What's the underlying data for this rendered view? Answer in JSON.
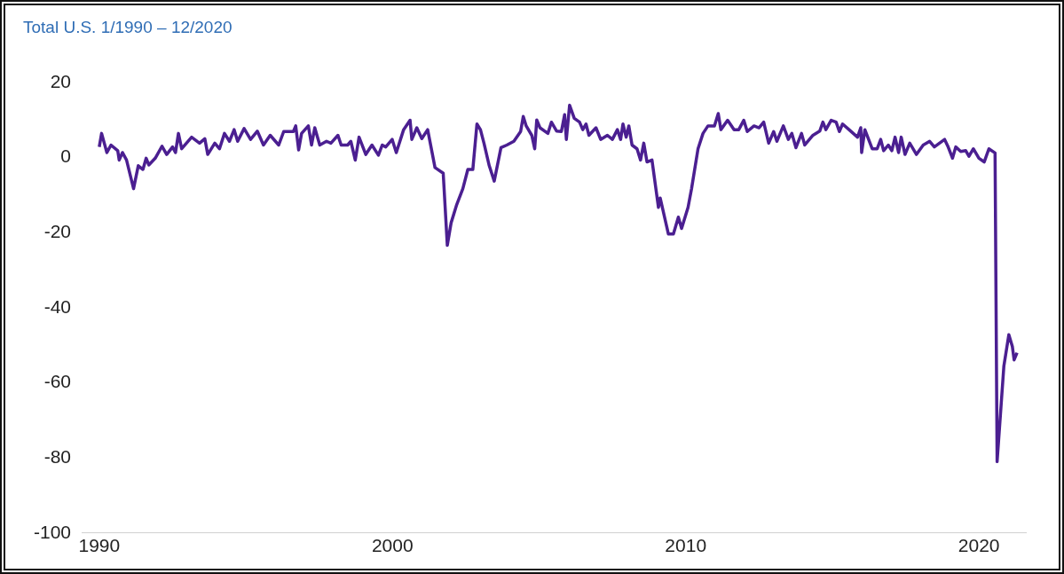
{
  "chart_data": {
    "type": "line",
    "title": "Total U.S. 1/1990 – 12/2020",
    "xlim": [
      1989.4,
      2021.6
    ],
    "xticks": [
      1990,
      2000,
      2010,
      2020
    ],
    "ylim": [
      -100,
      20
    ],
    "yticks": [
      -100,
      -80,
      -60,
      -40,
      -20,
      0,
      20
    ],
    "grid": false,
    "legend": false,
    "marker": "none",
    "line_style": "solid",
    "series": [
      {
        "color": "#4b1f91",
        "x": [
          1990.0,
          1990.08,
          1990.26,
          1990.4,
          1990.63,
          1990.68,
          1990.79,
          1990.93,
          1991.17,
          1991.33,
          1991.49,
          1991.6,
          1991.69,
          1991.91,
          1992.14,
          1992.3,
          1992.5,
          1992.6,
          1992.7,
          1992.81,
          1993.15,
          1993.42,
          1993.6,
          1993.7,
          1993.94,
          1994.1,
          1994.27,
          1994.44,
          1994.6,
          1994.72,
          1994.94,
          1995.16,
          1995.39,
          1995.6,
          1995.83,
          1996.12,
          1996.29,
          1996.62,
          1996.7,
          1996.8,
          1996.9,
          1997.13,
          1997.24,
          1997.35,
          1997.52,
          1997.75,
          1997.9,
          1998.14,
          1998.25,
          1998.47,
          1998.58,
          1998.73,
          1998.86,
          1999.09,
          1999.3,
          1999.52,
          1999.65,
          1999.77,
          1999.99,
          2000.13,
          2000.38,
          2000.6,
          2000.66,
          2000.83,
          2001.0,
          2001.2,
          2001.45,
          2001.73,
          2001.87,
          2002.0,
          2002.18,
          2002.4,
          2002.57,
          2002.74,
          2002.88,
          2003.0,
          2003.12,
          2003.3,
          2003.47,
          2003.7,
          2003.9,
          2004.14,
          2004.37,
          2004.46,
          2004.56,
          2004.75,
          2004.85,
          2004.92,
          2005.03,
          2005.3,
          2005.42,
          2005.6,
          2005.76,
          2005.87,
          2005.93,
          2006.04,
          2006.2,
          2006.38,
          2006.49,
          2006.6,
          2006.7,
          2006.94,
          2007.1,
          2007.33,
          2007.5,
          2007.67,
          2007.78,
          2007.86,
          2007.97,
          2008.06,
          2008.17,
          2008.34,
          2008.46,
          2008.57,
          2008.68,
          2008.85,
          2009.07,
          2009.13,
          2009.41,
          2009.58,
          2009.75,
          2009.86,
          2010.08,
          2010.2,
          2010.42,
          2010.59,
          2010.76,
          2010.98,
          2011.11,
          2011.2,
          2011.43,
          2011.65,
          2011.81,
          2011.98,
          2012.1,
          2012.33,
          2012.5,
          2012.66,
          2012.83,
          2013.0,
          2013.11,
          2013.33,
          2013.5,
          2013.62,
          2013.76,
          2013.95,
          2014.06,
          2014.34,
          2014.57,
          2014.68,
          2014.78,
          2014.96,
          2015.13,
          2015.24,
          2015.35,
          2015.57,
          2015.86,
          2015.97,
          2016.0,
          2016.11,
          2016.36,
          2016.53,
          2016.65,
          2016.75,
          2016.91,
          2017.03,
          2017.14,
          2017.26,
          2017.35,
          2017.48,
          2017.64,
          2017.87,
          2018.1,
          2018.32,
          2018.48,
          2018.83,
          2018.95,
          2019.1,
          2019.21,
          2019.38,
          2019.55,
          2019.66,
          2019.81,
          2020.0,
          2020.18,
          2020.34,
          2020.55,
          2020.62,
          2020.85,
          2021.02,
          2021.14,
          2021.2,
          2021.3
        ],
        "values": [
          2.8,
          6.4,
          1.3,
          3.3,
          1.8,
          -0.7,
          1.3,
          -0.7,
          -8.3,
          -2.2,
          -3.2,
          -0.2,
          -2,
          -0.2,
          3,
          0.8,
          2.8,
          1.3,
          6.4,
          2.3,
          5.4,
          3.8,
          5,
          0.8,
          3.8,
          2.3,
          6.4,
          4.3,
          7.4,
          4.3,
          7.7,
          4.8,
          7,
          3.3,
          5.9,
          3.3,
          6.9,
          6.9,
          8.4,
          2,
          6.4,
          8.4,
          3.3,
          7.9,
          3.3,
          4.3,
          3.8,
          5.9,
          3.3,
          3.3,
          4.3,
          -0.7,
          5.4,
          0.8,
          3.3,
          0.6,
          3.3,
          2.8,
          4.8,
          1.3,
          7.4,
          9.9,
          4.8,
          7.9,
          5,
          7.4,
          -2.7,
          -4.2,
          -23.4,
          -17.4,
          -12.8,
          -8.3,
          -3.2,
          -3.2,
          8.9,
          7.4,
          3.8,
          -2.2,
          -6.3,
          2.6,
          3.3,
          4.3,
          6.9,
          10.9,
          8.4,
          5.9,
          2.3,
          10,
          7.9,
          6.4,
          9.4,
          7,
          6.9,
          11.4,
          4.8,
          13.9,
          10.4,
          9.4,
          7.4,
          8.9,
          5.9,
          7.9,
          4.8,
          5.9,
          4.8,
          7.4,
          4.8,
          8.9,
          5.4,
          8.4,
          3.3,
          2.3,
          -0.7,
          3.8,
          -1.2,
          -0.7,
          -13.3,
          -10.8,
          -20.4,
          -20.4,
          -15.9,
          -18.9,
          -13.3,
          -8.3,
          2.3,
          6.4,
          8.4,
          8.4,
          11.7,
          7.4,
          9.9,
          7.4,
          7.4,
          9.9,
          6.9,
          8.4,
          7.9,
          9.4,
          3.8,
          6.9,
          4.3,
          8.4,
          4.8,
          6.4,
          2.6,
          6.4,
          3.3,
          5.9,
          7,
          9.4,
          7.4,
          9.9,
          9.4,
          6.9,
          8.9,
          7.4,
          5.4,
          7.9,
          1.3,
          7.4,
          2.3,
          2.3,
          4.8,
          1.8,
          3.3,
          1.8,
          5.4,
          1.3,
          5.4,
          0.8,
          3.8,
          0.8,
          3.3,
          4.3,
          2.8,
          4.8,
          2.8,
          -0.2,
          2.8,
          1.6,
          1.8,
          0.3,
          2.3,
          -0.2,
          -1.2,
          2.3,
          1.2,
          -81,
          -55.6,
          -47.2,
          -50.3,
          -53.9,
          -52
        ]
      }
    ]
  }
}
